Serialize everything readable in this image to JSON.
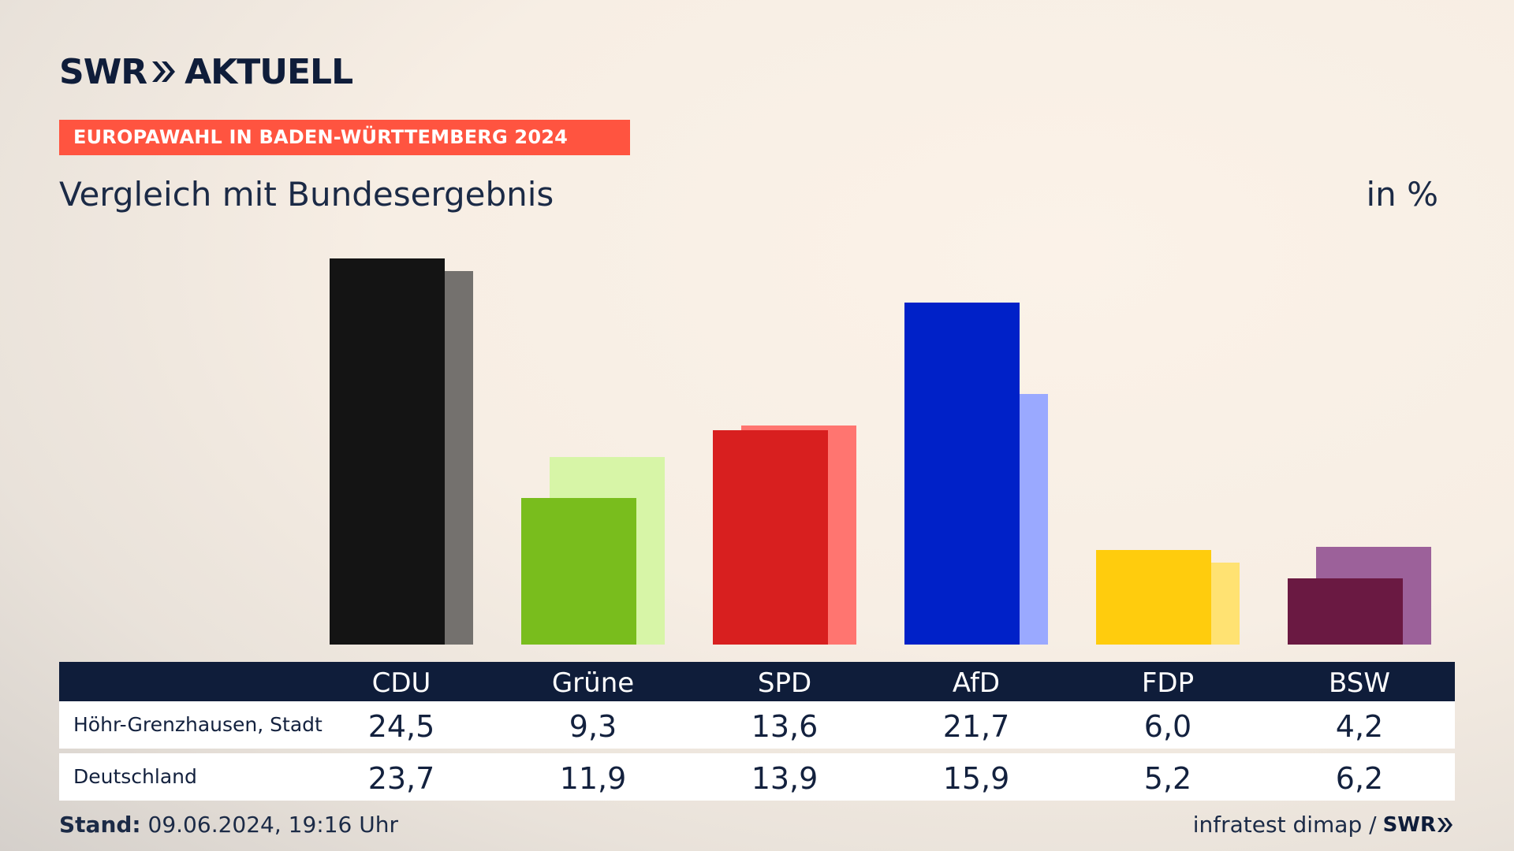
{
  "header": {
    "brand_swr": "SWR",
    "brand_aktuell": "AKTUELL",
    "banner": "EUROPAWAHL IN BADEN-WÜRTTEMBERG 2024",
    "title": "Vergleich mit Bundesergebnis",
    "unit": "in %"
  },
  "chart_data": {
    "type": "bar",
    "title": "Vergleich mit Bundesergebnis",
    "ylabel": "in %",
    "ylim": [
      0,
      24.5
    ],
    "grid": false,
    "categories": [
      "CDU",
      "Grüne",
      "SPD",
      "AfD",
      "FDP",
      "BSW"
    ],
    "series": [
      {
        "name": "Höhr-Grenzhausen, Stadt",
        "values": [
          24.5,
          9.3,
          13.6,
          21.7,
          6.0,
          4.2
        ],
        "labels": [
          "24,5",
          "9,3",
          "13,6",
          "21,7",
          "6,0",
          "4,2"
        ],
        "colors": [
          "#141414",
          "#79bd1d",
          "#d81f1f",
          "#0021c8",
          "#ffcc0d",
          "#6a1942"
        ]
      },
      {
        "name": "Deutschland",
        "values": [
          23.7,
          11.9,
          13.9,
          15.9,
          5.2,
          6.2
        ],
        "labels": [
          "23,7",
          "11,9",
          "13,9",
          "15,9",
          "5,2",
          "6,2"
        ],
        "colors": [
          "#74716e",
          "#d7f5a7",
          "#ff7570",
          "#9aa9ff",
          "#ffe272",
          "#9c619a"
        ]
      }
    ]
  },
  "footer": {
    "stand_label": "Stand:",
    "stand_value": "09.06.2024, 19:16 Uhr",
    "source": "infratest dimap /",
    "source_brand": "SWR"
  }
}
